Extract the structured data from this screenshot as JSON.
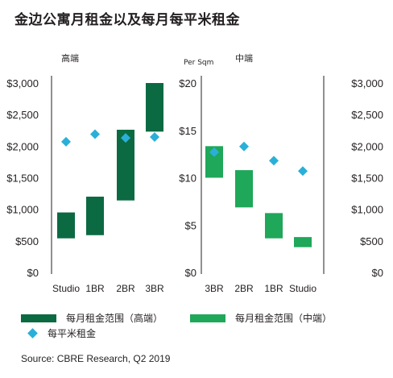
{
  "title": "金边公寓月租金以及每月每平米租金",
  "legend": {
    "high_range": "每月租金范围（高端）",
    "mid_range": "每月租金范围（中端）",
    "per_sqm": "每平米租金"
  },
  "source": "Source: CBRE Research, Q2 2019",
  "colors": {
    "high_bar": "#0b6a42",
    "mid_bar": "#1fa75a",
    "diamond": "#2ab0d8",
    "text": "#231f20"
  },
  "chart_data": [
    {
      "type": "floating-bar",
      "panel_label": "高端",
      "categories": [
        "Studio",
        "1BR",
        "2BR",
        "3BR"
      ],
      "ranges": [
        [
          540,
          950
        ],
        [
          590,
          1200
        ],
        [
          1140,
          2260
        ],
        [
          2230,
          3000
        ]
      ],
      "ylim": [
        0,
        3000
      ],
      "yticks": [
        "$0",
        "$500",
        "$1,000",
        "$1,500",
        "$2,000",
        "$2,500",
        "$3,000"
      ],
      "per_sqm": [
        13.8,
        14.6,
        14.2,
        14.3
      ],
      "per_sqm_ylim": [
        0,
        20
      ],
      "series": [
        {
          "name": "每月租金范围（高端）",
          "kind": "range"
        },
        {
          "name": "每平米租金",
          "kind": "marker"
        }
      ]
    },
    {
      "type": "floating-bar",
      "panel_label": "中端",
      "axis_caption": "Per Sqm",
      "categories": [
        "3BR",
        "2BR",
        "1BR",
        "Studio"
      ],
      "per_sqm_ylim": [
        0,
        20
      ],
      "yticks_left": [
        "$0",
        "$5",
        "$10",
        "$15",
        "$20"
      ],
      "yticks_right": [
        "$0",
        "$500",
        "$1,000",
        "$1,500",
        "$2,000",
        "$2,500",
        "$3,000"
      ],
      "ranges": [
        [
          1500,
          2000
        ],
        [
          1030,
          1620
        ],
        [
          540,
          940
        ],
        [
          400,
          560
        ]
      ],
      "ylim": [
        0,
        3000
      ],
      "per_sqm": [
        12.7,
        13.3,
        11.8,
        10.7
      ],
      "series": [
        {
          "name": "每月租金范围（中端）",
          "kind": "range"
        },
        {
          "name": "每平米租金",
          "kind": "marker"
        }
      ]
    }
  ]
}
